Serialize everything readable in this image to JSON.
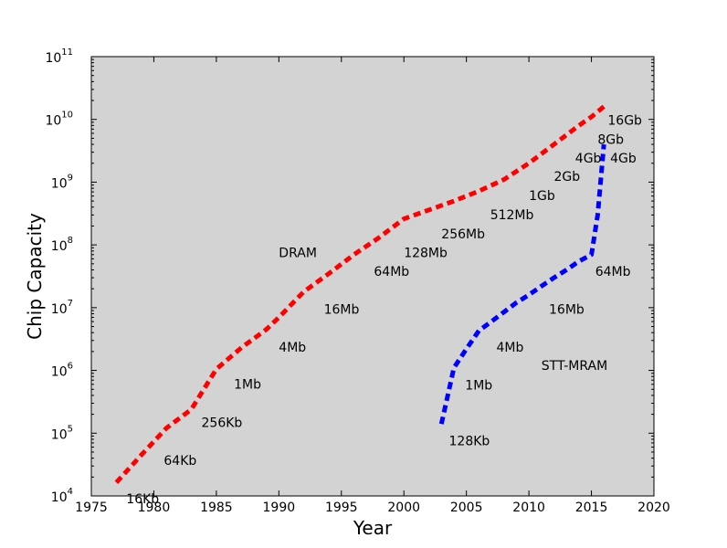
{
  "chart_data": {
    "type": "line",
    "xlabel": "Year",
    "ylabel": "Chip Capacity",
    "xlim": [
      1975,
      2020
    ],
    "ylim": [
      10000,
      100000000000
    ],
    "yscale": "log",
    "grid": false,
    "background": "#d3d3d3",
    "x_ticks": [
      "1975",
      "1980",
      "1985",
      "1990",
      "1995",
      "2000",
      "2005",
      "2010",
      "2015",
      "2020"
    ],
    "y_ticks": [
      {
        "value": 10000,
        "base": "10",
        "exp": "4"
      },
      {
        "value": 100000,
        "base": "10",
        "exp": "5"
      },
      {
        "value": 1000000,
        "base": "10",
        "exp": "6"
      },
      {
        "value": 10000000,
        "base": "10",
        "exp": "7"
      },
      {
        "value": 100000000,
        "base": "10",
        "exp": "8"
      },
      {
        "value": 1000000000,
        "base": "10",
        "exp": "9"
      },
      {
        "value": 10000000000,
        "base": "10",
        "exp": "10"
      },
      {
        "value": 100000000000,
        "base": "10",
        "exp": "11"
      }
    ],
    "series": [
      {
        "name": "DRAM",
        "color": "#ff0000",
        "line_style": "dashed",
        "x": [
          1977,
          1979,
          1981,
          1983,
          1985,
          1987,
          1989,
          1990,
          1992,
          1994,
          1996,
          1998,
          2000,
          2002,
          2004,
          2006,
          2008,
          2010,
          2012,
          2014,
          2015,
          2016
        ],
        "y": [
          16384,
          45000,
          120000,
          240000,
          1050000,
          2300000,
          4500000,
          7000000,
          18000000,
          35000000,
          70000000,
          130000000,
          260000000,
          360000000,
          500000000,
          720000000,
          1100000000,
          2000000000,
          4000000000,
          8000000000,
          11000000000,
          16000000000
        ]
      },
      {
        "name": "STT-MRAM",
        "color": "#0000ff",
        "line_style": "dashed",
        "x": [
          2003,
          2004,
          2005,
          2006,
          2007,
          2008,
          2009,
          2010,
          2011,
          2012,
          2013,
          2014,
          2015,
          2015.5,
          2016
        ],
        "y": [
          140000,
          1100000,
          2200000,
          4300000,
          6000000,
          8500000,
          12000000,
          16000000,
          22000000,
          30000000,
          40000000,
          55000000,
          70000000,
          300000000,
          4000000000
        ]
      }
    ],
    "point_labels": [
      {
        "text": "16Kb",
        "x": 1977.8,
        "y": 7600
      },
      {
        "text": "64Kb",
        "x": 1980.8,
        "y": 31000
      },
      {
        "text": "256Kb",
        "x": 1983.8,
        "y": 125000
      },
      {
        "text": "1Mb",
        "x": 1986.4,
        "y": 510000
      },
      {
        "text": "4Mb",
        "x": 1990.0,
        "y": 2000000
      },
      {
        "text": "16Mb",
        "x": 1993.6,
        "y": 8000000
      },
      {
        "text": "64Mb",
        "x": 1997.6,
        "y": 32000000
      },
      {
        "text": "128Mb",
        "x": 2000.0,
        "y": 64000000
      },
      {
        "text": "256Mb",
        "x": 2003.0,
        "y": 128000000
      },
      {
        "text": "512Mb",
        "x": 2006.9,
        "y": 255000000
      },
      {
        "text": "1Gb",
        "x": 2010.0,
        "y": 520000000
      },
      {
        "text": "2Gb",
        "x": 2012.0,
        "y": 1050000000
      },
      {
        "text": "4Gb",
        "x": 2013.7,
        "y": 2050000000
      },
      {
        "text": "8Gb",
        "x": 2015.5,
        "y": 4100000000
      },
      {
        "text": "16Gb",
        "x": 2016.3,
        "y": 8200000000
      },
      {
        "text": "4Gb",
        "x": 2016.5,
        "y": 2050000000
      },
      {
        "text": "128Kb",
        "x": 2003.6,
        "y": 64000
      },
      {
        "text": "1Mb",
        "x": 2004.9,
        "y": 500000
      },
      {
        "text": "4Mb",
        "x": 2007.4,
        "y": 2000000
      },
      {
        "text": "16Mb",
        "x": 2011.6,
        "y": 8000000
      },
      {
        "text": "64Mb",
        "x": 2015.3,
        "y": 32000000
      }
    ],
    "annotations": [
      {
        "text": "DRAM",
        "x": 1990.0,
        "y": 64000000
      },
      {
        "text": "STT-MRAM",
        "x": 2011.0,
        "y": 1020000
      }
    ]
  }
}
